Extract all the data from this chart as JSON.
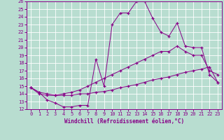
{
  "xlabel": "Windchill (Refroidissement éolien,°C)",
  "xlim": [
    -0.5,
    23.5
  ],
  "ylim": [
    12,
    26
  ],
  "xticks": [
    0,
    1,
    2,
    3,
    4,
    5,
    6,
    7,
    8,
    9,
    10,
    11,
    12,
    13,
    14,
    15,
    16,
    17,
    18,
    19,
    20,
    21,
    22,
    23
  ],
  "yticks": [
    12,
    13,
    14,
    15,
    16,
    17,
    18,
    19,
    20,
    21,
    22,
    23,
    24,
    25,
    26
  ],
  "bg_color": "#b8ddd0",
  "line_color": "#880088",
  "line1_x": [
    0,
    1,
    2,
    3,
    4,
    5,
    6,
    7,
    8,
    9,
    10,
    11,
    12,
    13,
    14,
    15,
    16,
    17,
    18,
    19,
    20,
    21,
    22,
    23
  ],
  "line1_y": [
    14.8,
    14.2,
    13.2,
    12.8,
    12.3,
    12.3,
    12.5,
    12.5,
    18.5,
    15.0,
    23.0,
    24.5,
    24.5,
    26.0,
    26.0,
    23.8,
    22.0,
    21.5,
    23.2,
    20.2,
    20.0,
    20.0,
    16.5,
    15.5
  ],
  "line2_x": [
    0,
    1,
    2,
    3,
    4,
    5,
    6,
    7,
    8,
    9,
    10,
    11,
    12,
    13,
    14,
    15,
    16,
    17,
    18,
    19,
    20,
    21,
    22,
    23
  ],
  "line2_y": [
    14.8,
    14.0,
    13.8,
    13.8,
    14.0,
    14.2,
    14.5,
    15.0,
    15.5,
    16.0,
    16.5,
    17.0,
    17.5,
    18.0,
    18.5,
    19.0,
    19.5,
    19.5,
    20.2,
    19.5,
    19.0,
    19.0,
    17.0,
    16.5
  ],
  "line3_x": [
    0,
    1,
    2,
    3,
    4,
    5,
    6,
    7,
    8,
    9,
    10,
    11,
    12,
    13,
    14,
    15,
    16,
    17,
    18,
    19,
    20,
    21,
    22,
    23
  ],
  "line3_y": [
    14.8,
    14.2,
    14.0,
    13.8,
    13.8,
    13.8,
    14.0,
    14.0,
    14.2,
    14.3,
    14.5,
    14.8,
    15.0,
    15.2,
    15.5,
    15.8,
    16.0,
    16.2,
    16.5,
    16.8,
    17.0,
    17.2,
    17.5,
    15.5
  ]
}
